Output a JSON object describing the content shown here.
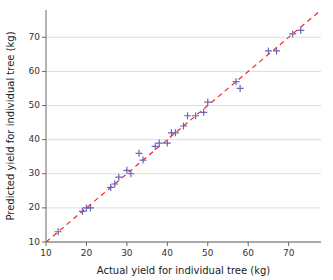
{
  "chart_data": {
    "type": "scatter",
    "xlabel": "Actual yield for individual tree (kg)",
    "ylabel": "Predicted yield for individual tree (kg)",
    "series": [
      {
        "type": "scatter",
        "marker": "plus",
        "color": "#6666bb",
        "x": [
          13,
          19,
          20,
          21,
          26,
          27,
          28,
          30,
          31,
          33,
          34,
          37,
          38,
          40,
          41,
          42,
          44,
          45,
          47,
          49,
          50,
          57,
          58,
          65,
          67,
          71,
          73
        ],
        "values": [
          13,
          19,
          20,
          20,
          26,
          27,
          29,
          31,
          30,
          36,
          34,
          38,
          39,
          39,
          42,
          42,
          44,
          47,
          47,
          48,
          51,
          57,
          55,
          66,
          66,
          71,
          72
        ]
      },
      {
        "type": "line",
        "line_style": "dashed",
        "color": "#ff2222",
        "x": [
          10,
          78
        ],
        "values": [
          10,
          78
        ]
      }
    ],
    "xlim": [
      10,
      78
    ],
    "ylim": [
      10,
      78
    ],
    "xticks": [
      10,
      20,
      30,
      40,
      50,
      60,
      70
    ],
    "yticks": [
      10,
      20,
      30,
      40,
      50,
      60,
      70
    ],
    "grid": "y"
  }
}
